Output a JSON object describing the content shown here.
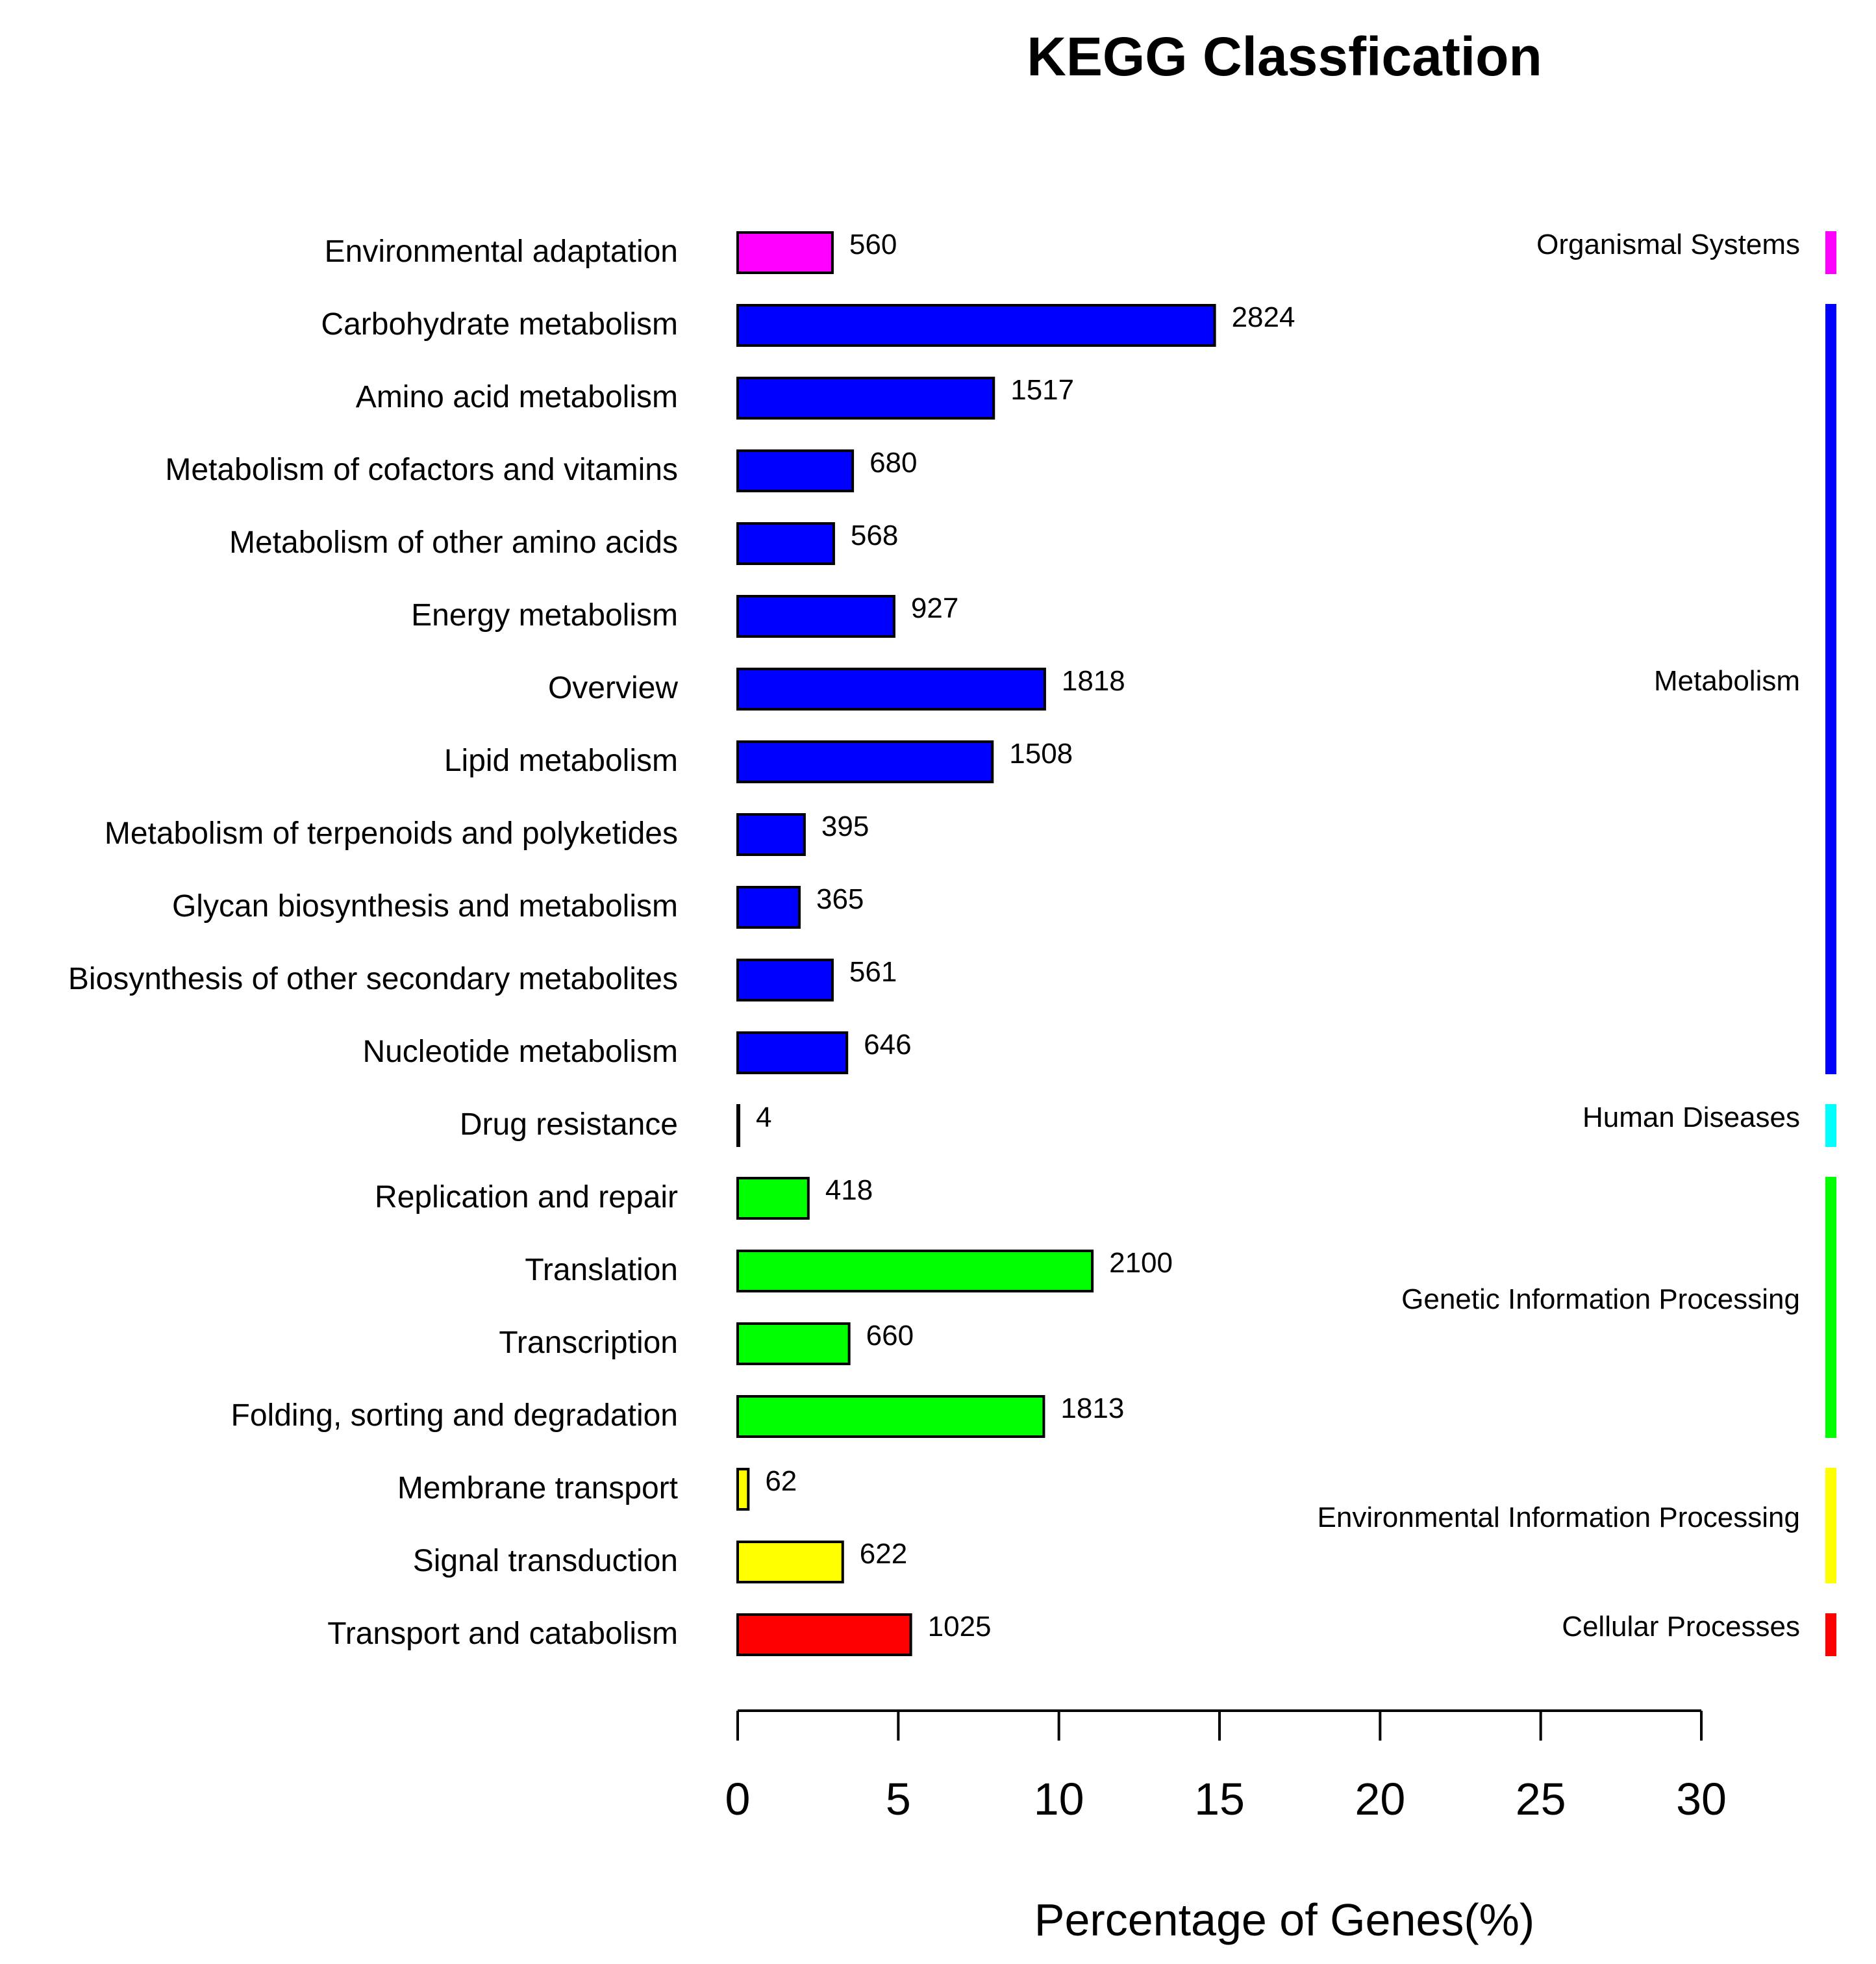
{
  "chart_data": {
    "type": "bar",
    "orientation": "horizontal",
    "title": "KEGG Classfication",
    "xlabel": "Percentage of Genes(%)",
    "ylabel": "",
    "xlim": [
      0,
      30
    ],
    "xticks": [
      "0",
      "5",
      "10",
      "15",
      "20",
      "25",
      "30"
    ],
    "grid": false,
    "categories": [
      "Environmental adaptation",
      "Carbohydrate metabolism",
      "Amino acid metabolism",
      "Metabolism of cofactors and vitamins",
      "Metabolism of other amino acids",
      "Energy metabolism",
      "Overview",
      "Lipid metabolism",
      "Metabolism of terpenoids and polyketides",
      "Glycan biosynthesis and metabolism",
      "Biosynthesis of other secondary metabolites",
      "Nucleotide metabolism",
      "Drug resistance",
      "Replication and repair",
      "Translation",
      "Transcription",
      "Folding, sorting and degradation",
      "Membrane transport",
      "Signal transduction",
      "Transport and catabolism"
    ],
    "values": [
      2.95,
      14.85,
      7.97,
      3.58,
      2.99,
      4.87,
      9.56,
      7.93,
      2.08,
      1.92,
      2.95,
      3.4,
      0.02,
      2.2,
      11.04,
      3.47,
      9.53,
      0.33,
      3.27,
      5.39
    ],
    "data_labels": [
      "560",
      "2824",
      "1517",
      "680",
      "568",
      "927",
      "1818",
      "1508",
      "395",
      "365",
      "561",
      "646",
      "4",
      "418",
      "2100",
      "660",
      "1813",
      "62",
      "622",
      "1025"
    ],
    "groups": [
      {
        "name": "Organismal Systems",
        "color": "#ff00ff",
        "start": 0,
        "end": 0
      },
      {
        "name": "Metabolism",
        "color": "#0000ff",
        "start": 1,
        "end": 11
      },
      {
        "name": "Human Diseases",
        "color": "#00ffff",
        "start": 12,
        "end": 12
      },
      {
        "name": "Genetic Information Processing",
        "color": "#00ff00",
        "start": 13,
        "end": 16
      },
      {
        "name": "Environmental Information Processing",
        "color": "#ffff00",
        "start": 17,
        "end": 18
      },
      {
        "name": "Cellular Processes",
        "color": "#ff0000",
        "start": 19,
        "end": 19
      }
    ]
  }
}
